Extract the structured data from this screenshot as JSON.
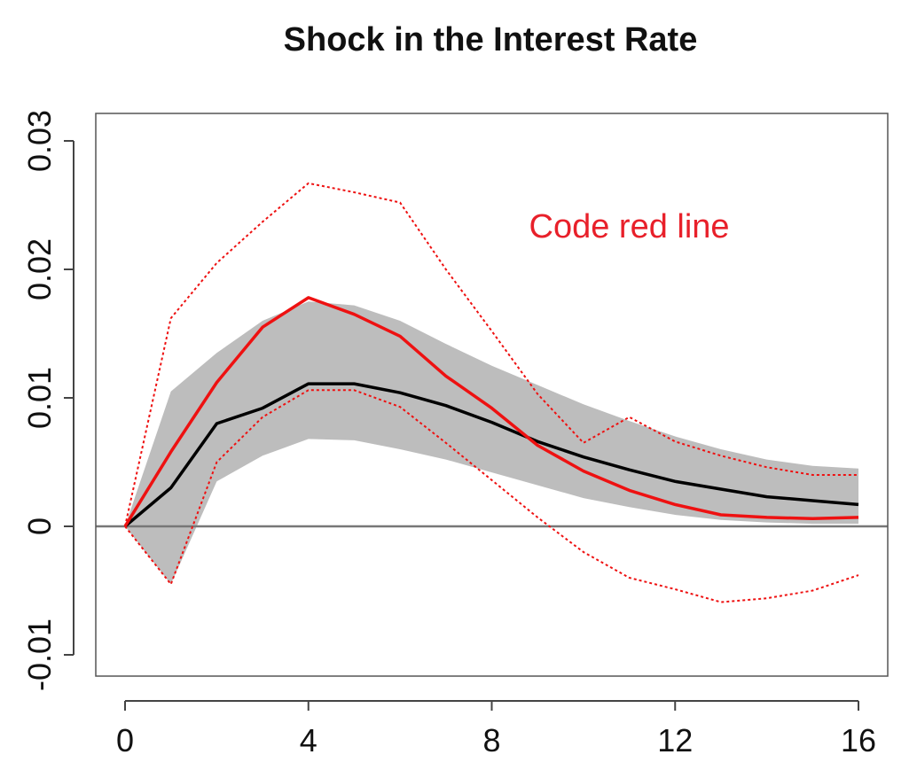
{
  "chart_data": {
    "type": "line",
    "title": "Shock in the Interest Rate",
    "xlabel": "",
    "ylabel": "",
    "xlim": [
      0,
      16
    ],
    "ylim": [
      -0.01,
      0.03
    ],
    "x_ticks": [
      0,
      4,
      8,
      12,
      16
    ],
    "x_tick_labels": [
      "0",
      "4",
      "8",
      "12",
      "16"
    ],
    "y_ticks": [
      -0.01,
      0,
      0.01,
      0.02,
      0.03
    ],
    "y_tick_labels": [
      "-0.01",
      "0",
      "0.01",
      "0.02",
      "0.03"
    ],
    "grid": false,
    "x": [
      0,
      1,
      2,
      3,
      4,
      5,
      6,
      7,
      8,
      9,
      10,
      11,
      12,
      13,
      14,
      15,
      16
    ],
    "band": {
      "lower": [
        0,
        -0.0045,
        0.0035,
        0.0055,
        0.0068,
        0.0067,
        0.006,
        0.0052,
        0.0042,
        0.0032,
        0.0022,
        0.0015,
        0.0009,
        0.0005,
        0.0003,
        0.0002,
        0.0002
      ],
      "upper": [
        0,
        0.0105,
        0.0135,
        0.016,
        0.0175,
        0.0172,
        0.016,
        0.0142,
        0.0125,
        0.011,
        0.0095,
        0.0082,
        0.007,
        0.006,
        0.0052,
        0.0047,
        0.0045
      ],
      "color": "#bdbdbd"
    },
    "series": [
      {
        "values": [
          0,
          0.003,
          0.008,
          0.0092,
          0.0111,
          0.0111,
          0.0104,
          0.0094,
          0.0081,
          0.0066,
          0.0054,
          0.0044,
          0.0035,
          0.0029,
          0.0023,
          0.002,
          0.0017
        ],
        "color": "#000000",
        "style": "solid"
      },
      {
        "values": [
          0,
          0.0058,
          0.0112,
          0.0155,
          0.0178,
          0.0165,
          0.0148,
          0.0117,
          0.0092,
          0.0063,
          0.0043,
          0.0028,
          0.0017,
          0.0009,
          0.0007,
          0.0006,
          0.0007
        ],
        "color": "#ee1111",
        "style": "solid"
      },
      {
        "values": [
          0,
          0.0162,
          0.0205,
          0.0237,
          0.0267,
          0.026,
          0.0252,
          0.02,
          0.0152,
          0.0103,
          0.0065,
          0.0085,
          0.0066,
          0.0055,
          0.0046,
          0.004,
          0.004
        ],
        "color": "#ee1111",
        "style": "dotted"
      },
      {
        "values": [
          0,
          -0.0045,
          0.005,
          0.0085,
          0.0106,
          0.0106,
          0.0093,
          0.0065,
          0.0036,
          0.0007,
          -0.002,
          -0.004,
          -0.0049,
          -0.0059,
          -0.0056,
          -0.005,
          -0.0038
        ],
        "color": "#ee1111",
        "style": "dotted"
      }
    ],
    "zero_line": {
      "y": 0,
      "color": "#777777"
    },
    "annotation": {
      "text": "Code red line",
      "x": 11,
      "y": 0.0225,
      "color": "#e8202a"
    }
  }
}
